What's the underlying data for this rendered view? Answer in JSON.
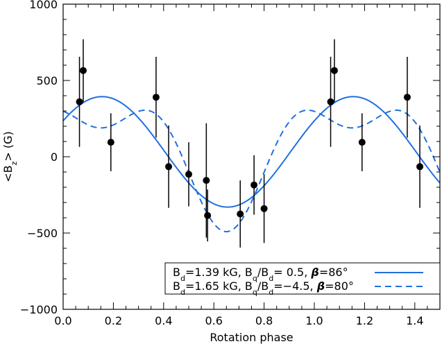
{
  "chart_data": {
    "type": "scatter",
    "title": "",
    "xlabel": "Rotation phase",
    "ylabel_parts": [
      "<B",
      "z",
      "> (G)"
    ],
    "xlim": [
      0.0,
      1.5
    ],
    "ylim": [
      -1000,
      1000
    ],
    "x_ticks": [
      0.0,
      0.2,
      0.4,
      0.6,
      0.8,
      1.0,
      1.2,
      1.4
    ],
    "x_tick_labels": [
      "0.0",
      "0.2",
      "0.4",
      "0.6",
      "0.8",
      "1.0",
      "1.2",
      "1.4"
    ],
    "y_ticks": [
      -1000,
      -500,
      0,
      500,
      1000
    ],
    "y_tick_labels": [
      "−1000",
      "−500",
      "0",
      "500",
      "1000"
    ],
    "x_minor_step": 0.05,
    "y_minor_step": 100,
    "grid": false,
    "legend_position": "bottom-right",
    "series": [
      {
        "kind": "points",
        "color": "#000000",
        "points": [
          {
            "x": 0.065,
            "y": 360,
            "err": 295
          },
          {
            "x": 0.08,
            "y": 565,
            "err": 205
          },
          {
            "x": 0.19,
            "y": 95,
            "err": 190
          },
          {
            "x": 0.37,
            "y": 390,
            "err": 265
          },
          {
            "x": 0.42,
            "y": -65,
            "err": 270
          },
          {
            "x": 0.5,
            "y": -115,
            "err": 210
          },
          {
            "x": 0.57,
            "y": -155,
            "err": 375
          },
          {
            "x": 0.575,
            "y": -385,
            "err": 170
          },
          {
            "x": 0.705,
            "y": -375,
            "err": 220
          },
          {
            "x": 0.76,
            "y": -185,
            "err": 195
          },
          {
            "x": 0.8,
            "y": -340,
            "err": 225
          },
          {
            "x": 1.065,
            "y": 360,
            "err": 295
          },
          {
            "x": 1.08,
            "y": 565,
            "err": 205
          },
          {
            "x": 1.19,
            "y": 95,
            "err": 190
          },
          {
            "x": 1.37,
            "y": 390,
            "err": 265
          },
          {
            "x": 1.42,
            "y": -65,
            "err": 270
          }
        ]
      },
      {
        "kind": "line",
        "style": "solid",
        "color": "#1f6fe0",
        "legend_parts": [
          {
            "t": "B"
          },
          {
            "t": "d",
            "sub": true
          },
          {
            "t": "=1.39 kG, B"
          },
          {
            "t": "q",
            "sub": true
          },
          {
            "t": "/B"
          },
          {
            "t": "d",
            "sub": true
          },
          {
            "t": "= 0.5, "
          },
          {
            "t": "β",
            "b": true
          },
          {
            "t": "=86°"
          }
        ],
        "model": {
          "mean": 32,
          "a1": 362,
          "phi1": 0.155,
          "a2": 0,
          "phi2": 0.0
        }
      },
      {
        "kind": "line",
        "style": "dashed",
        "color": "#1f6fe0",
        "legend_parts": [
          {
            "t": "B"
          },
          {
            "t": "d",
            "sub": true
          },
          {
            "t": "=1.65 kG, B"
          },
          {
            "t": "q",
            "sub": true
          },
          {
            "t": "/B"
          },
          {
            "t": "d",
            "sub": true
          },
          {
            "t": "=−4.5, "
          },
          {
            "t": "β",
            "b": true
          },
          {
            "t": "=80°"
          }
        ],
        "model": {
          "mean": 39,
          "a1": 340,
          "phi1": 0.15,
          "a2": 190,
          "phi2": 0.4
        }
      }
    ]
  }
}
